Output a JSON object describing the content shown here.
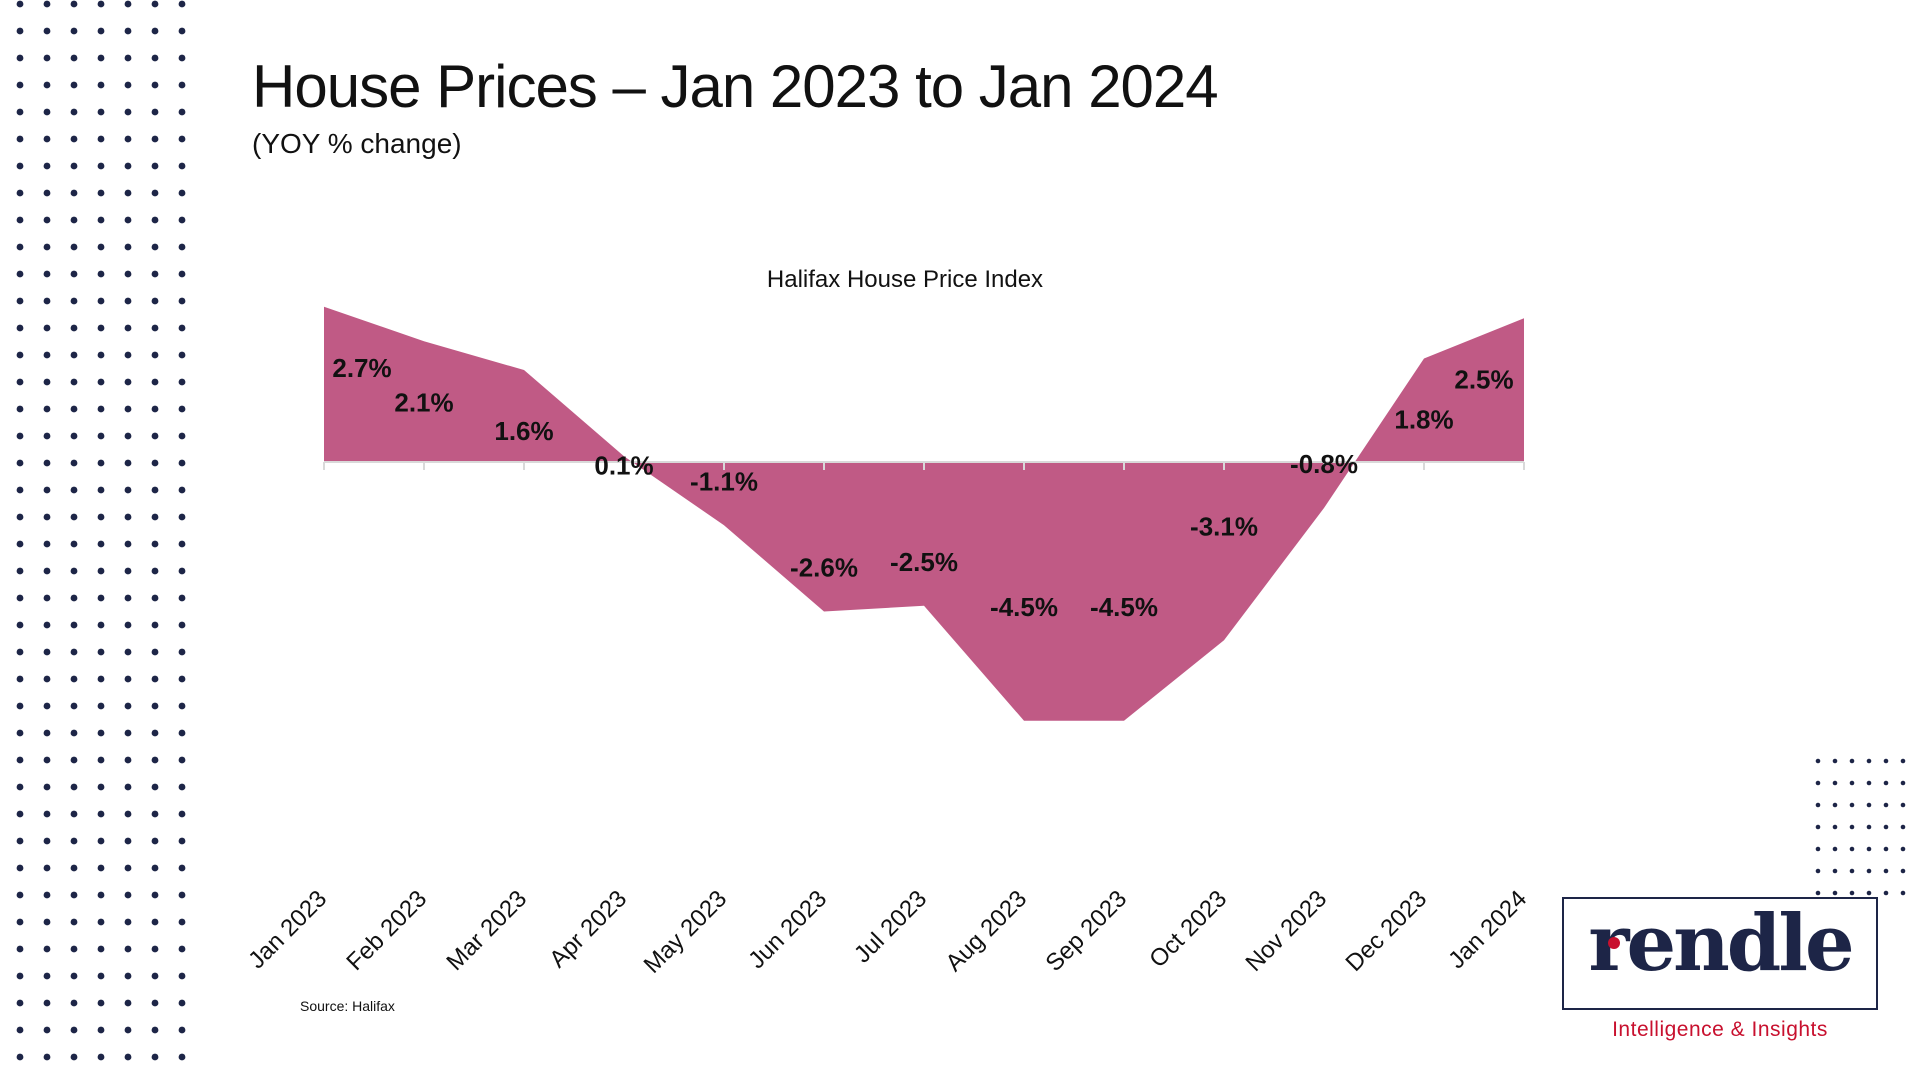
{
  "slide": {
    "title": "House Prices – Jan 2023 to Jan 2024",
    "subtitle": "(YOY % change)",
    "source": "Source: Halifax"
  },
  "logo": {
    "wordmark": "rendle",
    "tagline": "Intelligence & Insights"
  },
  "colors": {
    "area_fill": "#c05a85",
    "dots": "#1d2547",
    "logo_accent": "#c8102e"
  },
  "chart_data": {
    "type": "area",
    "title": "Halifax House Price Index",
    "xlabel": "",
    "ylabel": "",
    "categories": [
      "Jan 2023",
      "Feb 2023",
      "Mar 2023",
      "Apr 2023",
      "May 2023",
      "Jun 2023",
      "Jul 2023",
      "Aug 2023",
      "Sep 2023",
      "Oct 2023",
      "Nov 2023",
      "Dec 2023",
      "Jan 2024"
    ],
    "values": [
      2.7,
      2.1,
      1.6,
      0.1,
      -1.1,
      -2.6,
      -2.5,
      -4.5,
      -4.5,
      -3.1,
      -0.8,
      1.8,
      2.5
    ],
    "data_labels": [
      "2.7%",
      "2.1%",
      "1.6%",
      "0.1%",
      "-1.1%",
      "-2.6%",
      "-2.5%",
      "-4.5%",
      "-4.5%",
      "-3.1%",
      "-0.8%",
      "1.8%",
      "2.5%"
    ],
    "grid": false,
    "legend": "none"
  }
}
